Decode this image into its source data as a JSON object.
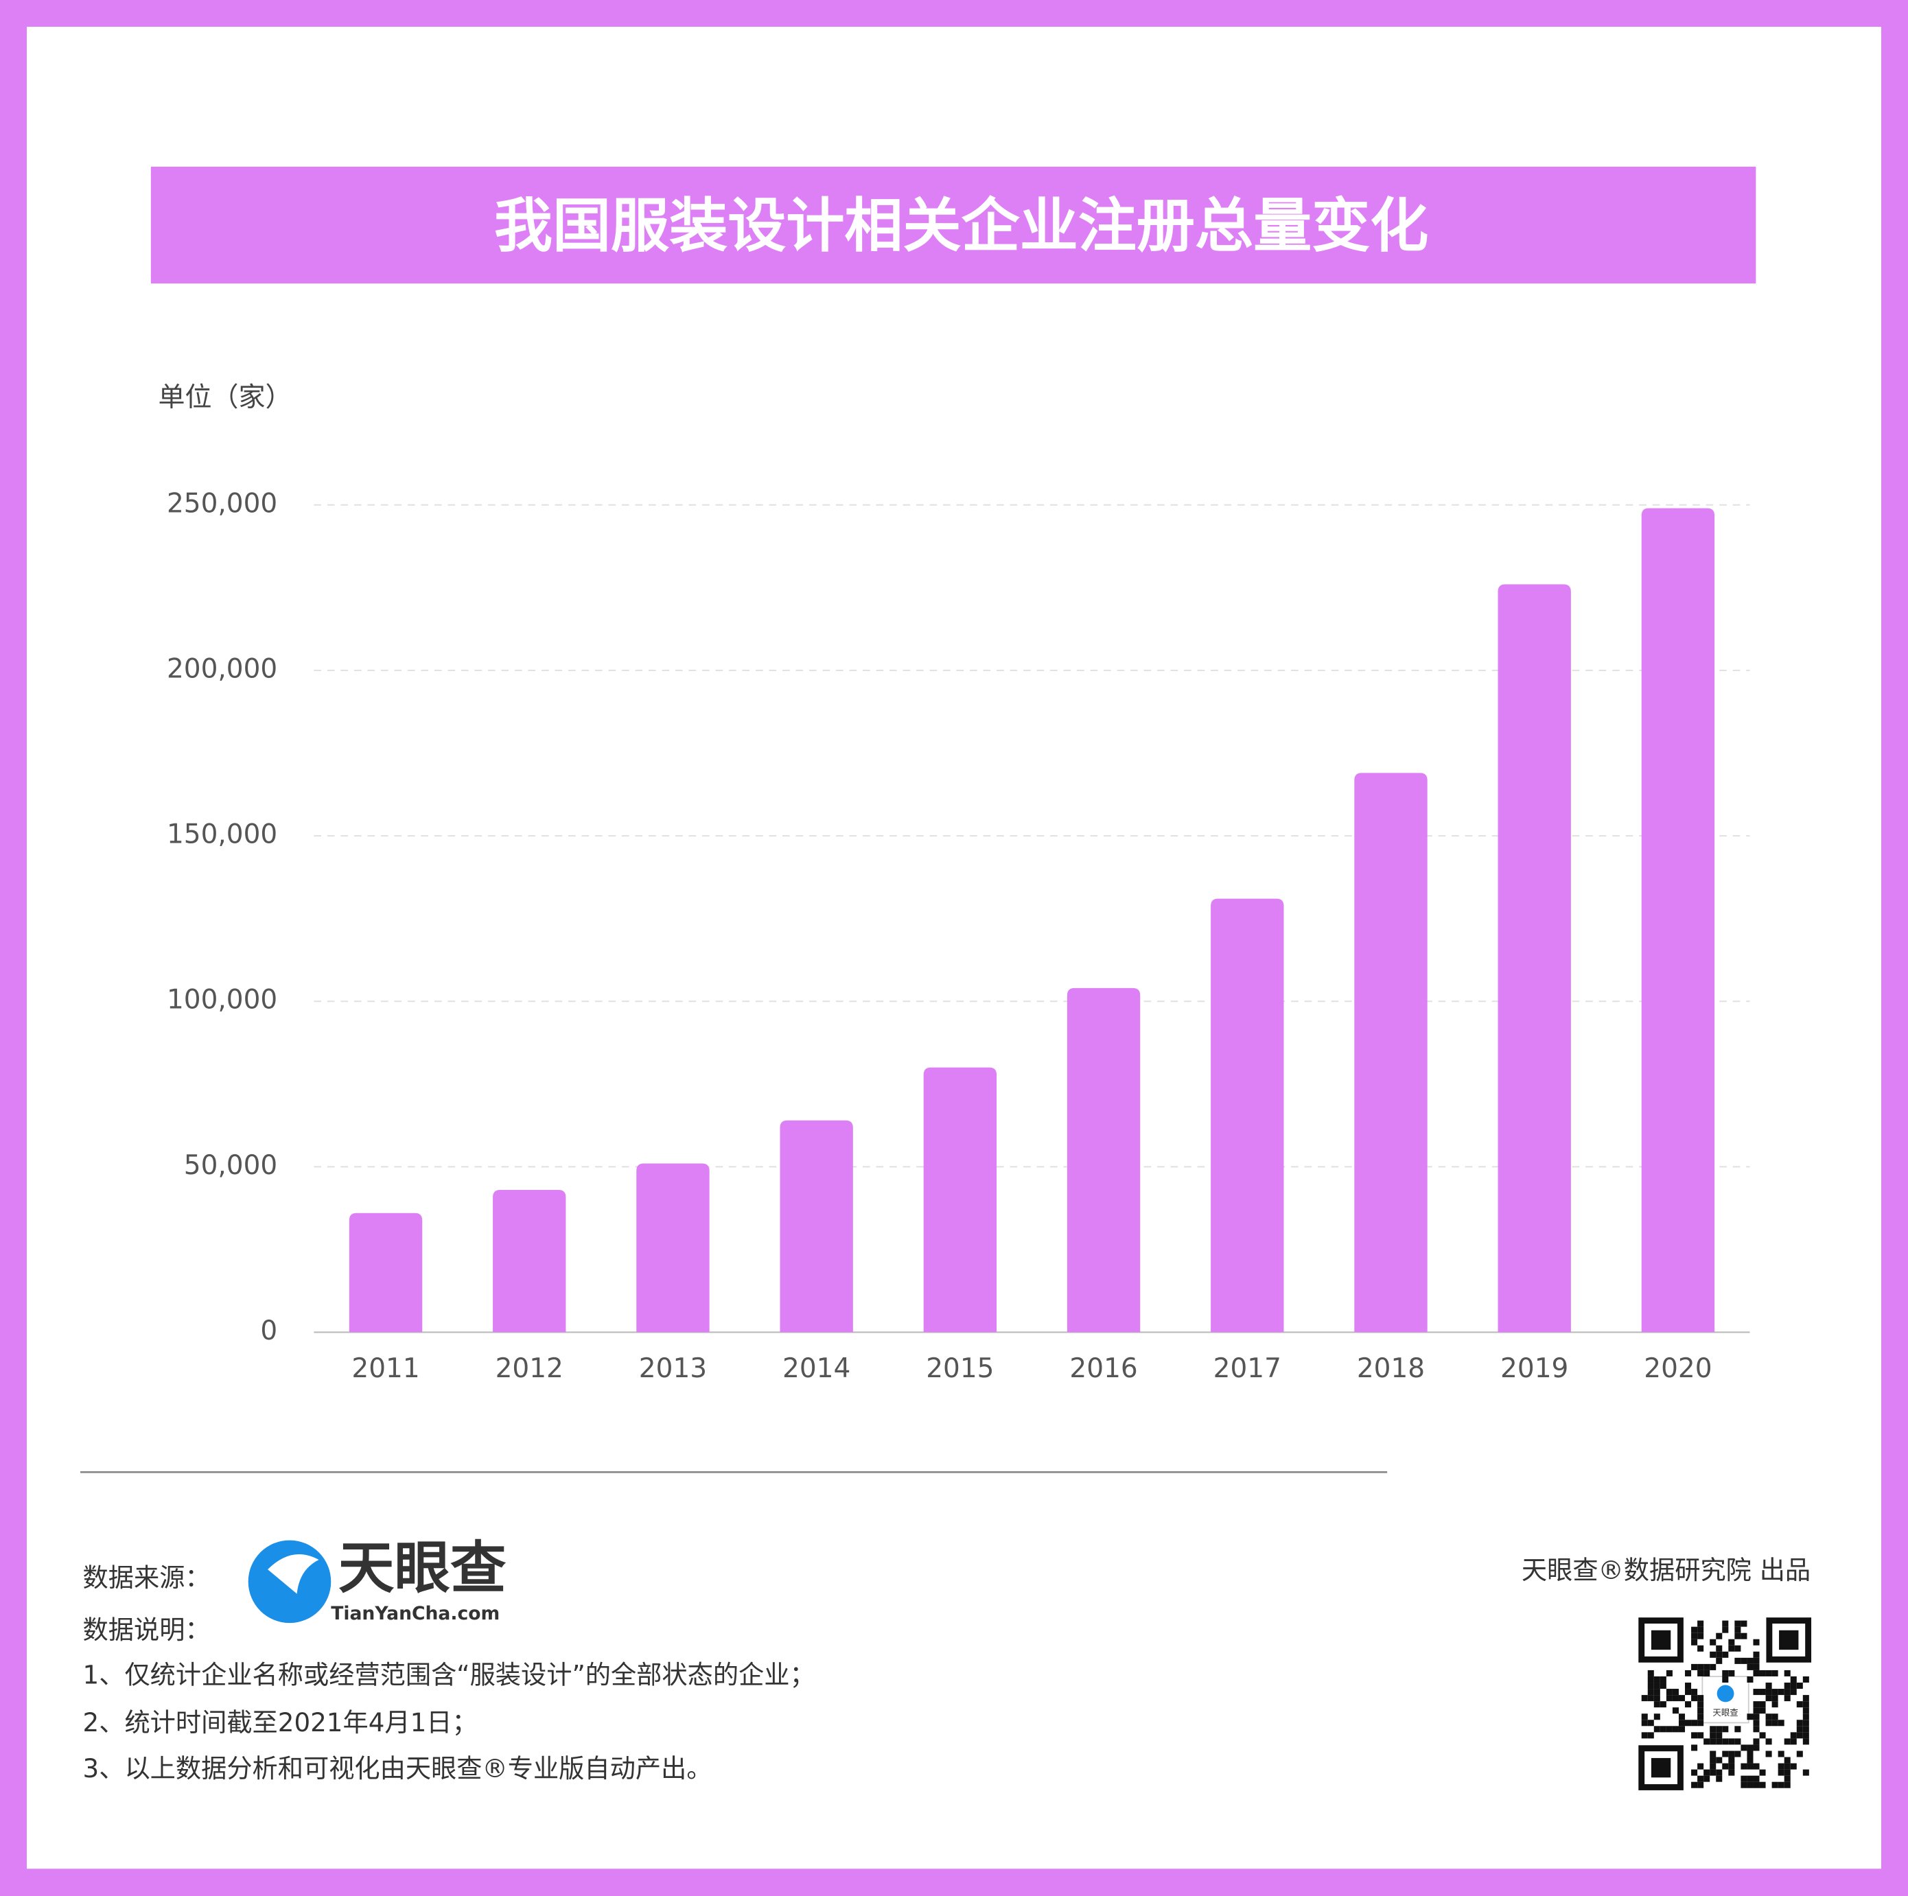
{
  "chart_data": {
    "type": "bar",
    "title": "我国服装设计相关企业注册总量变化",
    "y_unit": "单位（家）",
    "categories": [
      "2011",
      "2012",
      "2013",
      "2014",
      "2015",
      "2016",
      "2017",
      "2018",
      "2019",
      "2020"
    ],
    "values": [
      36000,
      43000,
      51000,
      64000,
      80000,
      104000,
      131000,
      169000,
      226000,
      249000
    ],
    "color": "#de80f5",
    "ylim": [
      0,
      250000
    ],
    "yticks": [
      0,
      {
        "value": 50000,
        "label": "50,000"
      },
      {
        "value": 100000,
        "label": "100,000"
      },
      {
        "value": 150000,
        "label": "150,000"
      },
      {
        "value": 200000,
        "label": "200,000"
      },
      {
        "value": 250000,
        "label": "250,000"
      }
    ],
    "grid": true
  },
  "footer": {
    "source_label": "数据来源：",
    "logo_text": "天眼查",
    "logo_sub": "TianYanCha.com",
    "notes_label": "数据说明：",
    "notes": [
      "1、仅统计企业名称或经营范围含“服装设计”的全部状态的企业；",
      "2、统计时间截至2021年4月1日；",
      "3、以上数据分析和可视化由天眼查®专业版自动产出。"
    ],
    "credit": "天眼查®数据研究院 出品",
    "qr_label": "天眼查"
  }
}
